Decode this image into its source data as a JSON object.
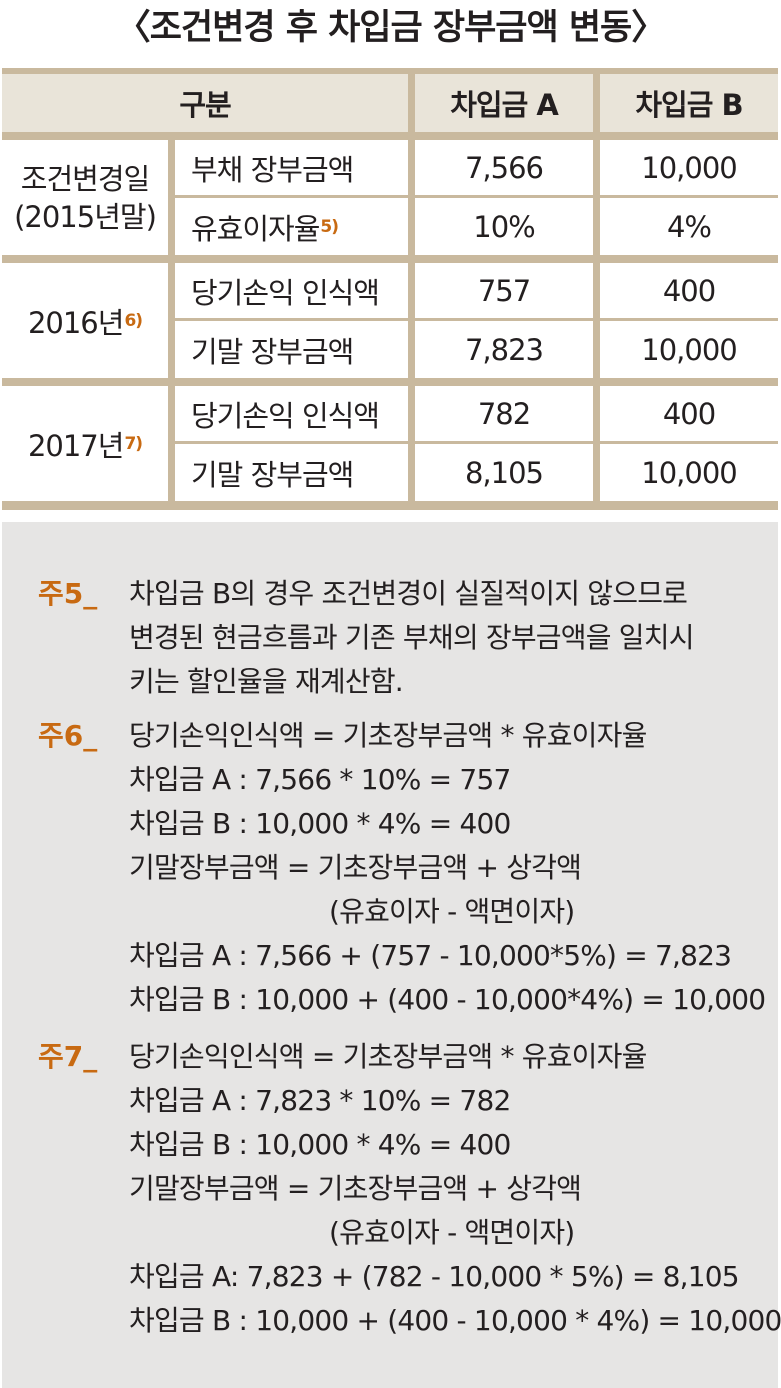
{
  "title": "〈조건변경 후 차입금 장부금액 변동〉",
  "table": {
    "headers": [
      "구분",
      "차입금 A",
      "차입금 B"
    ],
    "groups": [
      {
        "label_lines": [
          "조건변경일",
          "(2015년말)"
        ],
        "note": "",
        "rows": [
          {
            "item": "부채 장부금액",
            "item_note": "",
            "a": "7,566",
            "b": "10,000"
          },
          {
            "item": "유효이자율",
            "item_note": "5)",
            "a": "10%",
            "b": "4%"
          }
        ]
      },
      {
        "label_lines": [
          "2016년"
        ],
        "note": "6)",
        "rows": [
          {
            "item": "당기손익 인식액",
            "item_note": "",
            "a": "757",
            "b": "400"
          },
          {
            "item": "기말 장부금액",
            "item_note": "",
            "a": "7,823",
            "b": "10,000"
          }
        ]
      },
      {
        "label_lines": [
          "2017년"
        ],
        "note": "7)",
        "rows": [
          {
            "item": "당기손익 인식액",
            "item_note": "",
            "a": "782",
            "b": "400"
          },
          {
            "item": "기말 장부금액",
            "item_note": "",
            "a": "8,105",
            "b": "10,000"
          }
        ]
      }
    ]
  },
  "notes": [
    {
      "label": "주5_",
      "lines": [
        {
          "text": "차입금 B의 경우 조건변경이 실질적이지 않으므로",
          "indent": false
        },
        {
          "text": "변경된 현금흐름과 기존 부채의 장부금액을 일치시",
          "indent": false
        },
        {
          "text": "키는 할인율을 재계산함.",
          "indent": false
        }
      ]
    },
    {
      "label": "주6_",
      "lines": [
        {
          "text": "당기손익인식액 = 기초장부금액 * 유효이자율",
          "indent": false
        },
        {
          "text": "차입금 A : 7,566 * 10% = 757",
          "indent": false
        },
        {
          "text": "차입금 B : 10,000 * 4% = 400",
          "indent": false
        },
        {
          "text": "기말장부금액 = 기초장부금액 + 상각액",
          "indent": false
        },
        {
          "text": "(유효이자 - 액면이자)",
          "indent": true
        },
        {
          "text": "차입금 A : 7,566 + (757 - 10,000*5%) = 7,823",
          "indent": false
        },
        {
          "text": "차입금 B : 10,000 + (400 - 10,000*4%) = 10,000",
          "indent": false
        }
      ]
    },
    {
      "label": "주7_",
      "lines": [
        {
          "text": "당기손익인식액 = 기초장부금액 * 유효이자율",
          "indent": false
        },
        {
          "text": "차입금 A : 7,823 * 10% = 782",
          "indent": false
        },
        {
          "text": "차입금 B : 10,000 * 4% = 400",
          "indent": false
        },
        {
          "text": "기말장부금액 = 기초장부금액 + 상각액",
          "indent": false
        },
        {
          "text": "(유효이자 - 액면이자)",
          "indent": true
        },
        {
          "text": "차입금 A: 7,823 + (782 - 10,000 * 5%) = 8,105",
          "indent": false
        },
        {
          "text": "차입금 B : 10,000 + (400 - 10,000 * 4%) = 10,000",
          "indent": false
        }
      ]
    }
  ]
}
